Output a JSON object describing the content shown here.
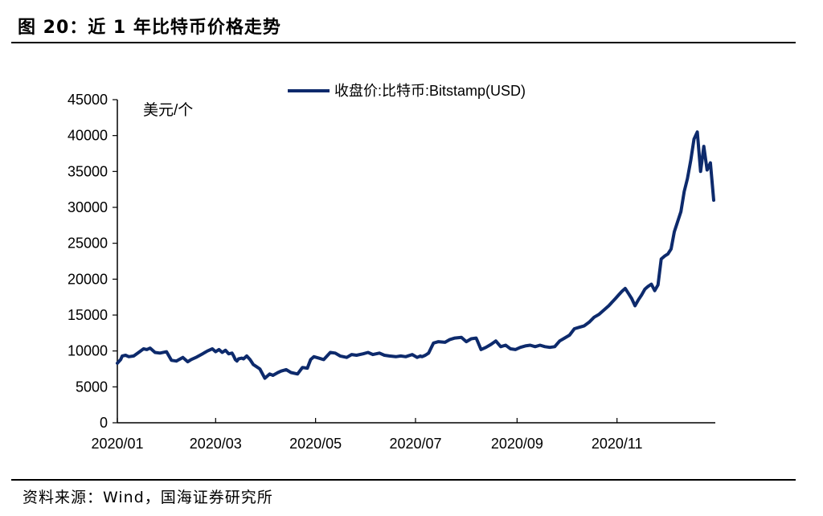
{
  "figure": {
    "title": "图 20：近 1 年比特币价格走势",
    "source": "资料来源：Wind，国海证券研究所"
  },
  "colors": {
    "series": "#0d2a6c",
    "axis": "#000000"
  },
  "chart_data": {
    "type": "line",
    "title": "",
    "xlabel": "",
    "ylabel": "美元/个",
    "ylim": [
      0,
      45000
    ],
    "yticks": [
      0,
      5000,
      10000,
      15000,
      20000,
      25000,
      30000,
      35000,
      40000,
      45000
    ],
    "ytick_labels": [
      "0",
      "5000",
      "10000",
      "15000",
      "20000",
      "25000",
      "30000",
      "35000",
      "40000",
      "45000"
    ],
    "xlim": [
      0,
      365
    ],
    "xticks": [
      0,
      60,
      121,
      182,
      244,
      305
    ],
    "xtick_labels": [
      "2020/01",
      "2020/03",
      "2020/05",
      "2020/07",
      "2020/09",
      "2020/11"
    ],
    "legend": "top-center",
    "grid": false,
    "series": [
      {
        "name": "收盘价:比特币:Bitstamp(USD)",
        "x": [
          0,
          2,
          3,
          5,
          7,
          10,
          13,
          16,
          18,
          20,
          23,
          26,
          30,
          33,
          36,
          40,
          43,
          45,
          48,
          52,
          55,
          58,
          60,
          62,
          64,
          66,
          68,
          70,
          71,
          72,
          73,
          74,
          76,
          77,
          79,
          81,
          83,
          85,
          87,
          90,
          93,
          95,
          98,
          100,
          103,
          106,
          110,
          113,
          116,
          118,
          120,
          123,
          126,
          130,
          133,
          136,
          140,
          143,
          146,
          150,
          153,
          156,
          160,
          163,
          166,
          170,
          173,
          176,
          180,
          183,
          185,
          186,
          188,
          190,
          193,
          196,
          200,
          203,
          206,
          210,
          213,
          216,
          219,
          220,
          222,
          225,
          228,
          231,
          234,
          237,
          240,
          243,
          246,
          249,
          252,
          255,
          258,
          261,
          264,
          267,
          270,
          273,
          276,
          279,
          282,
          285,
          288,
          291,
          294,
          297,
          300,
          302,
          304,
          306,
          308,
          310,
          312,
          314,
          316,
          318,
          320,
          322,
          324,
          326,
          328,
          330,
          332,
          334,
          336,
          338,
          340,
          342,
          344,
          346,
          348,
          350,
          352,
          354,
          356,
          358,
          360,
          362,
          364
        ],
        "values": [
          8300,
          8800,
          9300,
          9400,
          9200,
          9300,
          9800,
          10300,
          10200,
          10400,
          9800,
          9700,
          9900,
          8700,
          8600,
          9100,
          8500,
          8800,
          9100,
          9600,
          10000,
          10300,
          9900,
          10200,
          9800,
          10100,
          9600,
          9700,
          9300,
          8800,
          8600,
          8900,
          9000,
          8900,
          9300,
          8800,
          8100,
          7800,
          7500,
          6200,
          6800,
          6600,
          7000,
          7200,
          7400,
          7000,
          6800,
          7700,
          7600,
          8800,
          9200,
          9000,
          8800,
          9800,
          9700,
          9300,
          9100,
          9500,
          9400,
          9600,
          9800,
          9500,
          9700,
          9400,
          9300,
          9200,
          9300,
          9200,
          9500,
          9100,
          9300,
          9200,
          9400,
          9700,
          11100,
          11300,
          11200,
          11600,
          11800,
          11900,
          11300,
          11700,
          11800,
          11300,
          10200,
          10500,
          10900,
          11400,
          10600,
          10800,
          10300,
          10200,
          10500,
          10700,
          10800,
          10600,
          10800,
          10600,
          10500,
          10600,
          11400,
          11800,
          12200,
          13100,
          13300,
          13500,
          14000,
          14700,
          15100,
          15700,
          16300,
          16800,
          17300,
          17800,
          18300,
          18700,
          18000,
          17300,
          16300,
          17100,
          17800,
          18600,
          19000,
          19300,
          18400,
          19200,
          22800,
          23200,
          23500,
          24200,
          26600,
          28000,
          29400,
          32200,
          34000,
          36500,
          39500,
          40500,
          35000,
          38500,
          35200,
          36200,
          31000
        ]
      }
    ]
  }
}
